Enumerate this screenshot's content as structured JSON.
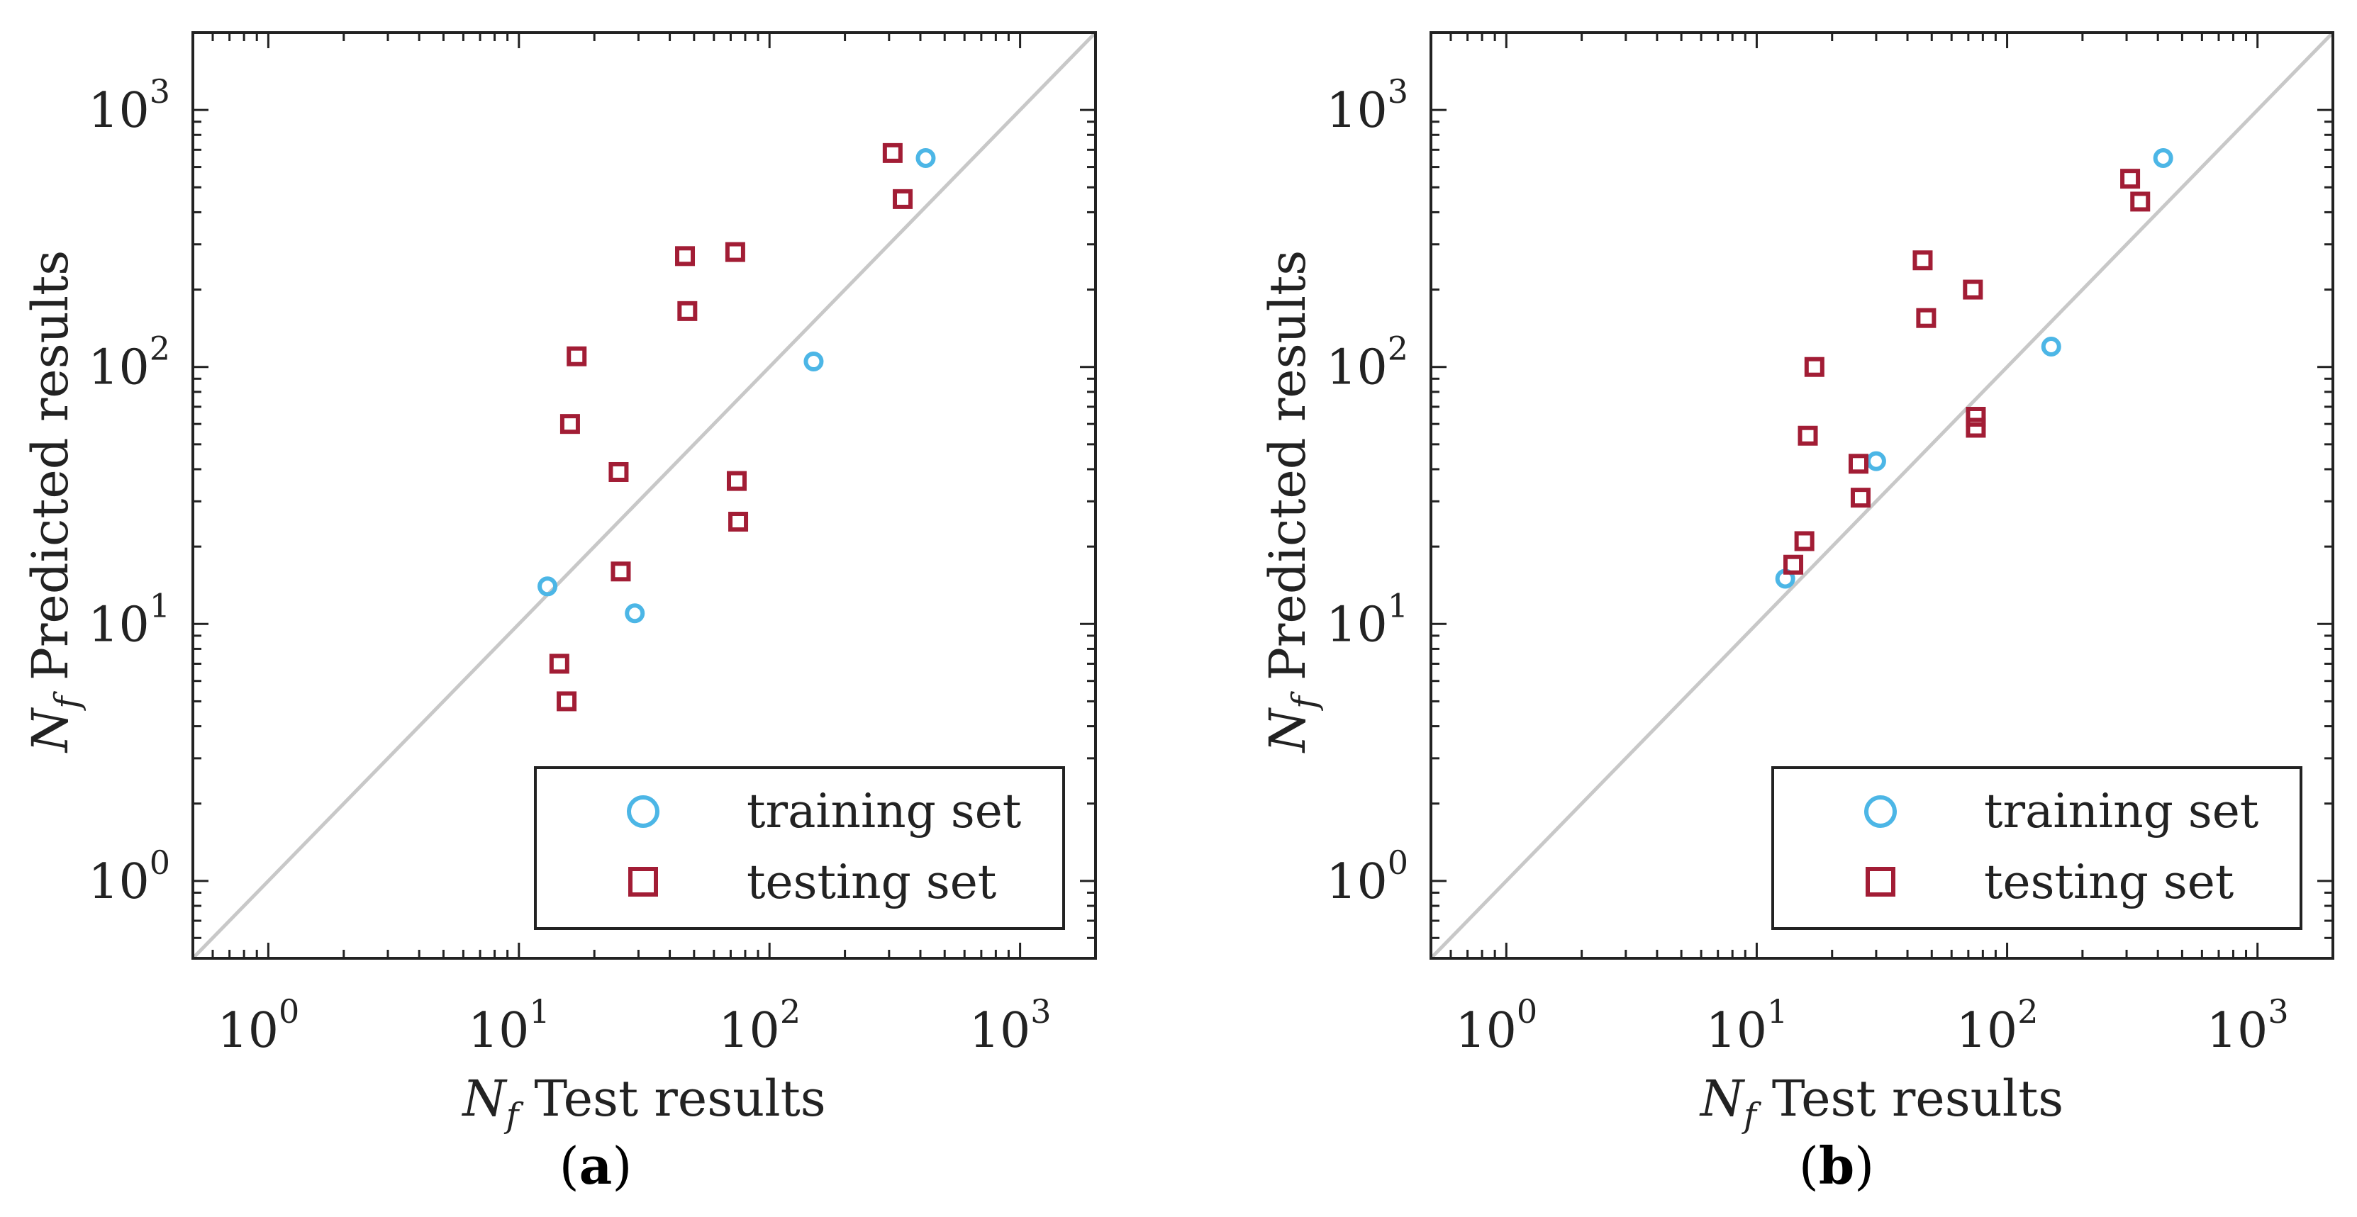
{
  "colors": {
    "training": "#4cb6e6",
    "testing": "#a21d35",
    "diagonal": "#c8c8c8",
    "axis": "#222222"
  },
  "chart_data": [
    {
      "type": "scatter",
      "scale": "log-log",
      "panel_label": "(a)",
      "panel_letter": "a",
      "xlabel_var": "N",
      "xlabel_sub": "f",
      "xlabel_text": "Test results",
      "ylabel_var": "N",
      "ylabel_sub": "f",
      "ylabel_text": "Predicted results",
      "xlim": [
        0.5,
        2000
      ],
      "ylim": [
        0.5,
        2000
      ],
      "ticks": [
        1,
        10,
        100,
        1000
      ],
      "tick_labels": [
        {
          "base": "10",
          "exp": "0"
        },
        {
          "base": "10",
          "exp": "1"
        },
        {
          "base": "10",
          "exp": "2"
        },
        {
          "base": "10",
          "exp": "3"
        }
      ],
      "reference_line": "y = x",
      "legend": {
        "position": "bottom-right",
        "entries": [
          "training set",
          "testing set"
        ]
      },
      "series": [
        {
          "name": "training set",
          "marker": "circle",
          "points": [
            [
              13,
              14
            ],
            [
              29,
              11
            ],
            [
              150,
              105
            ],
            [
              420,
              650
            ]
          ]
        },
        {
          "name": "testing set",
          "marker": "square",
          "points": [
            [
              14.5,
              7
            ],
            [
              15.5,
              5
            ],
            [
              16,
              60
            ],
            [
              17,
              110
            ],
            [
              25,
              39
            ],
            [
              25.5,
              16
            ],
            [
              46,
              270
            ],
            [
              47,
              165
            ],
            [
              73,
              280
            ],
            [
              74,
              36
            ],
            [
              75,
              25
            ],
            [
              310,
              680
            ],
            [
              340,
              450
            ]
          ]
        }
      ]
    },
    {
      "type": "scatter",
      "scale": "log-log",
      "panel_label": "(b)",
      "panel_letter": "b",
      "xlabel_var": "N",
      "xlabel_sub": "f",
      "xlabel_text": "Test results",
      "ylabel_var": "N",
      "ylabel_sub": "f",
      "ylabel_text": "Predicted results",
      "xlim": [
        0.5,
        2000
      ],
      "ylim": [
        0.5,
        2000
      ],
      "ticks": [
        1,
        10,
        100,
        1000
      ],
      "tick_labels": [
        {
          "base": "10",
          "exp": "0"
        },
        {
          "base": "10",
          "exp": "1"
        },
        {
          "base": "10",
          "exp": "2"
        },
        {
          "base": "10",
          "exp": "3"
        }
      ],
      "reference_line": "y = x",
      "legend": {
        "position": "bottom-right",
        "entries": [
          "training set",
          "testing set"
        ]
      },
      "series": [
        {
          "name": "training set",
          "marker": "circle",
          "points": [
            [
              13,
              15
            ],
            [
              30,
              43
            ],
            [
              150,
              120
            ],
            [
              420,
              650
            ]
          ]
        },
        {
          "name": "testing set",
          "marker": "square",
          "points": [
            [
              14,
              17
            ],
            [
              15.5,
              21
            ],
            [
              16,
              54
            ],
            [
              17,
              100
            ],
            [
              25.5,
              42
            ],
            [
              26,
              31
            ],
            [
              46,
              260
            ],
            [
              47.5,
              155
            ],
            [
              73,
              200
            ],
            [
              75,
              64
            ],
            [
              75,
              58
            ],
            [
              310,
              540
            ],
            [
              340,
              440
            ]
          ]
        }
      ]
    }
  ]
}
